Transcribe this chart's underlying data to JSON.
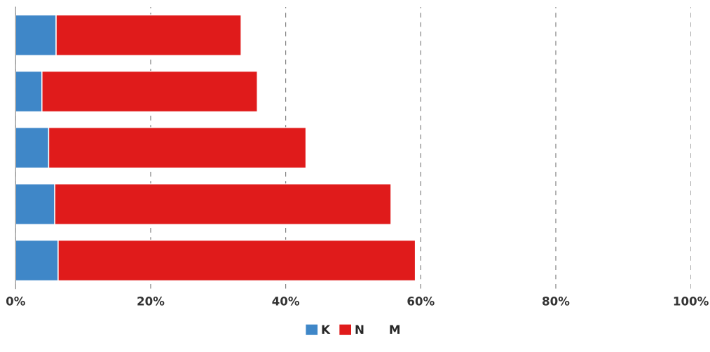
{
  "chart_data": {
    "type": "bar",
    "orientation": "horizontal",
    "stacked": true,
    "categories": [
      null,
      null,
      null,
      null,
      null
    ],
    "series": [
      {
        "name": "K",
        "color": "#3f87c8",
        "values": [
          6.0,
          3.9,
          4.9,
          5.8,
          6.3
        ]
      },
      {
        "name": "N",
        "color": "#e01b1b",
        "values": [
          27.4,
          31.9,
          38.1,
          49.8,
          52.9
        ]
      },
      {
        "name": "M",
        "values": [
          null,
          null,
          null,
          null,
          null
        ]
      }
    ],
    "xlim": [
      0,
      100
    ],
    "xticks": [
      {
        "value": 0,
        "label": "0%"
      },
      {
        "value": 20,
        "label": "20%"
      },
      {
        "value": 40,
        "label": "40%"
      },
      {
        "value": 60,
        "label": "60%"
      },
      {
        "value": 80,
        "label": "80%"
      },
      {
        "value": 100,
        "label": "100%"
      }
    ],
    "grid": "x",
    "legend": "bottom"
  }
}
